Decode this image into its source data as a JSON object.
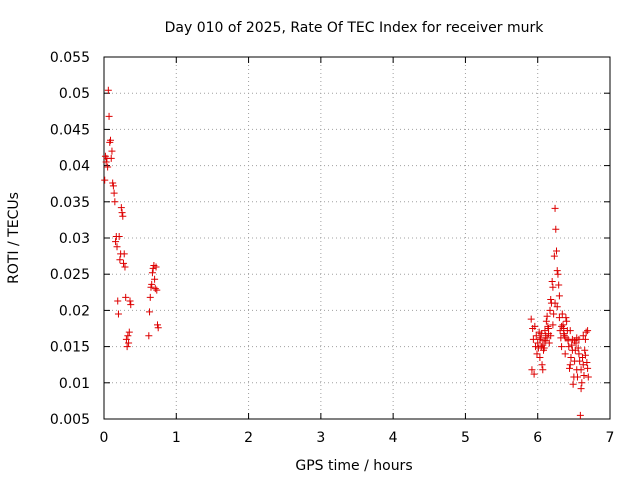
{
  "chart_data": {
    "type": "scatter",
    "title": "Day 010 of 2025, Rate Of TEC Index for receiver murk",
    "xlabel": "GPS time / hours",
    "ylabel": "ROTI / TECUs",
    "xlim": [
      0,
      7
    ],
    "ylim": [
      0.005,
      0.055
    ],
    "xticks": [
      0,
      1,
      2,
      3,
      4,
      5,
      6,
      7
    ],
    "xtick_labels": [
      "0",
      "1",
      "2",
      "3",
      "4",
      "5",
      "6",
      "7"
    ],
    "yticks": [
      0.005,
      0.01,
      0.015,
      0.02,
      0.025,
      0.03,
      0.035,
      0.04,
      0.045,
      0.05,
      0.055
    ],
    "ytick_labels": [
      "0.005",
      "0.01",
      "0.015",
      "0.02",
      "0.025",
      "0.03",
      "0.035",
      "0.04",
      "0.045",
      "0.05",
      "0.055"
    ],
    "grid": true,
    "marker": "+",
    "marker_color": "#dd0000",
    "series": [
      {
        "points": [
          [
            0.01,
            0.038
          ],
          [
            0.02,
            0.0413
          ],
          [
            0.03,
            0.0405
          ],
          [
            0.04,
            0.041
          ],
          [
            0.05,
            0.0398
          ],
          [
            0.06,
            0.0504
          ],
          [
            0.07,
            0.0468
          ],
          [
            0.08,
            0.0432
          ],
          [
            0.09,
            0.0435
          ],
          [
            0.1,
            0.041
          ],
          [
            0.11,
            0.042
          ],
          [
            0.12,
            0.0376
          ],
          [
            0.13,
            0.0372
          ],
          [
            0.14,
            0.0362
          ],
          [
            0.15,
            0.035
          ],
          [
            0.16,
            0.0295
          ],
          [
            0.17,
            0.0302
          ],
          [
            0.18,
            0.0288
          ],
          [
            0.19,
            0.0213
          ],
          [
            0.2,
            0.0195
          ],
          [
            0.21,
            0.0302
          ],
          [
            0.22,
            0.027
          ],
          [
            0.23,
            0.0278
          ],
          [
            0.24,
            0.0342
          ],
          [
            0.25,
            0.0335
          ],
          [
            0.26,
            0.033
          ],
          [
            0.27,
            0.0265
          ],
          [
            0.28,
            0.0278
          ],
          [
            0.29,
            0.026
          ],
          [
            0.3,
            0.0218
          ],
          [
            0.31,
            0.016
          ],
          [
            0.32,
            0.015
          ],
          [
            0.33,
            0.0165
          ],
          [
            0.34,
            0.0155
          ],
          [
            0.35,
            0.017
          ],
          [
            0.36,
            0.0213
          ],
          [
            0.37,
            0.0208
          ],
          [
            0.62,
            0.0165
          ],
          [
            0.63,
            0.0198
          ],
          [
            0.64,
            0.0218
          ],
          [
            0.65,
            0.0232
          ],
          [
            0.66,
            0.0236
          ],
          [
            0.67,
            0.0252
          ],
          [
            0.68,
            0.0258
          ],
          [
            0.69,
            0.0262
          ],
          [
            0.7,
            0.0243
          ],
          [
            0.71,
            0.023
          ],
          [
            0.72,
            0.026
          ],
          [
            0.73,
            0.0228
          ],
          [
            0.74,
            0.018
          ],
          [
            0.75,
            0.0176
          ],
          [
            5.91,
            0.0188
          ],
          [
            5.92,
            0.0118
          ],
          [
            5.93,
            0.0175
          ],
          [
            5.94,
            0.016
          ],
          [
            5.95,
            0.0112
          ],
          [
            5.96,
            0.0178
          ],
          [
            5.97,
            0.015
          ],
          [
            5.98,
            0.0165
          ],
          [
            5.99,
            0.014
          ],
          [
            6.0,
            0.0155
          ],
          [
            6.01,
            0.0148
          ],
          [
            6.02,
            0.017
          ],
          [
            6.03,
            0.0135
          ],
          [
            6.04,
            0.0162
          ],
          [
            6.05,
            0.015
          ],
          [
            6.06,
            0.0125
          ],
          [
            6.07,
            0.0118
          ],
          [
            6.08,
            0.0145
          ],
          [
            6.09,
            0.0158
          ],
          [
            6.1,
            0.0172
          ],
          [
            6.11,
            0.0165
          ],
          [
            6.12,
            0.0185
          ],
          [
            6.13,
            0.0192
          ],
          [
            6.14,
            0.0178
          ],
          [
            6.15,
            0.0168
          ],
          [
            6.16,
            0.0155
          ],
          [
            6.17,
            0.02
          ],
          [
            6.18,
            0.0215
          ],
          [
            6.19,
            0.021
          ],
          [
            6.2,
            0.024
          ],
          [
            6.21,
            0.0232
          ],
          [
            6.22,
            0.0195
          ],
          [
            6.23,
            0.0275
          ],
          [
            6.24,
            0.0341
          ],
          [
            6.25,
            0.0312
          ],
          [
            6.26,
            0.0282
          ],
          [
            6.27,
            0.0255
          ],
          [
            6.28,
            0.025
          ],
          [
            6.29,
            0.0235
          ],
          [
            6.3,
            0.019
          ],
          [
            6.31,
            0.0172
          ],
          [
            6.32,
            0.0162
          ],
          [
            6.33,
            0.015
          ],
          [
            6.34,
            0.0195
          ],
          [
            6.35,
            0.018
          ],
          [
            6.36,
            0.0175
          ],
          [
            6.37,
            0.0165
          ],
          [
            6.38,
            0.014
          ],
          [
            6.39,
            0.019
          ],
          [
            6.4,
            0.0185
          ],
          [
            6.41,
            0.0172
          ],
          [
            6.42,
            0.016
          ],
          [
            6.43,
            0.015
          ],
          [
            6.44,
            0.012
          ],
          [
            6.45,
            0.0125
          ],
          [
            6.46,
            0.0135
          ],
          [
            6.47,
            0.0152
          ],
          [
            6.48,
            0.016
          ],
          [
            6.49,
            0.0098
          ],
          [
            6.5,
            0.0108
          ],
          [
            6.51,
            0.013
          ],
          [
            6.52,
            0.0145
          ],
          [
            6.53,
            0.0155
          ],
          [
            6.54,
            0.0118
          ],
          [
            6.55,
            0.0108
          ],
          [
            6.56,
            0.0148
          ],
          [
            6.57,
            0.016
          ],
          [
            6.58,
            0.013
          ],
          [
            6.59,
            0.0055
          ],
          [
            6.6,
            0.0092
          ],
          [
            6.61,
            0.01
          ],
          [
            6.62,
            0.0135
          ],
          [
            6.63,
            0.0165
          ],
          [
            6.64,
            0.011
          ],
          [
            6.65,
            0.0145
          ],
          [
            6.66,
            0.016
          ],
          [
            6.67,
            0.017
          ],
          [
            6.68,
            0.0128
          ],
          [
            6.69,
            0.0172
          ],
          [
            6.7,
            0.0108
          ],
          [
            6.03,
            0.016
          ],
          [
            6.05,
            0.0168
          ],
          [
            6.07,
            0.0152
          ],
          [
            6.09,
            0.0148
          ],
          [
            6.11,
            0.0158
          ],
          [
            6.13,
            0.0162
          ],
          [
            6.15,
            0.0175
          ],
          [
            6.18,
            0.0165
          ],
          [
            6.21,
            0.018
          ],
          [
            6.24,
            0.021
          ],
          [
            6.27,
            0.0205
          ],
          [
            6.3,
            0.022
          ],
          [
            6.33,
            0.0178
          ],
          [
            6.36,
            0.0168
          ],
          [
            6.39,
            0.0162
          ],
          [
            6.42,
            0.0158
          ],
          [
            6.45,
            0.0172
          ],
          [
            6.48,
            0.0145
          ],
          [
            6.51,
            0.0158
          ],
          [
            6.54,
            0.0162
          ],
          [
            6.57,
            0.014
          ],
          [
            6.6,
            0.0118
          ],
          [
            6.63,
            0.0125
          ],
          [
            6.66,
            0.0138
          ],
          [
            6.69,
            0.012
          ]
        ]
      }
    ]
  }
}
